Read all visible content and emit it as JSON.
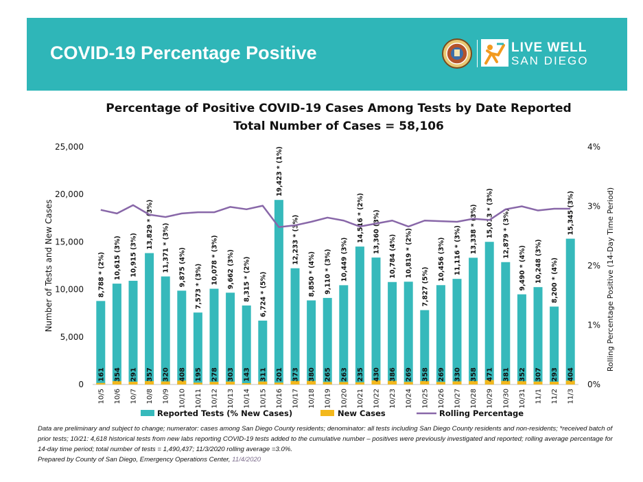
{
  "header": {
    "title": "COVID-19 Percentage Positive",
    "logo_line1": "LIVE WELL",
    "logo_line2": "SAN DIEGO"
  },
  "colors": {
    "banner": "#2fb6b8",
    "bars": "#36b9bb",
    "new_cases": "#f3b81c",
    "rolling": "#8867a8"
  },
  "chart_data": {
    "type": "bar",
    "title": "Percentage of Positive COVID-19 Cases Among Tests by Date Reported",
    "subtitle": "Total Number of Cases = 58,106",
    "ylabel": "Number of Tests and New Cases",
    "y2label": "Rolling Percentage Positive (14-Day Time Period)",
    "ylim": [
      0,
      25000
    ],
    "y2lim": [
      0,
      4
    ],
    "yticks": [
      "0",
      "5,000",
      "10,000",
      "15,000",
      "20,000",
      "25,000"
    ],
    "y2ticks": [
      "0%",
      "1%",
      "2%",
      "3%",
      "4%"
    ],
    "categories": [
      "10/5",
      "10/6",
      "10/7",
      "10/8",
      "10/9",
      "10/10",
      "10/11",
      "10/12",
      "10/13",
      "10/14",
      "10/15",
      "10/16",
      "10/17",
      "10/18",
      "10/19",
      "10/20",
      "10/21",
      "10/22",
      "10/23",
      "10/24",
      "10/25",
      "10/26",
      "10/27",
      "10/28",
      "10/29",
      "10/30",
      "10/31",
      "11/1",
      "11/2",
      "11/3"
    ],
    "series": [
      {
        "name": "Reported Tests (% New Cases)",
        "values": [
          8788,
          10615,
          10915,
          13829,
          11371,
          9875,
          7573,
          10078,
          9662,
          8315,
          6724,
          19423,
          12233,
          8850,
          9110,
          10449,
          14516,
          13360,
          10784,
          10819,
          7827,
          10456,
          11116,
          13338,
          15013,
          12879,
          9490,
          10248,
          8200,
          15345
        ],
        "labels": [
          "8,788 * (2%)",
          "10,615 (3%)",
          "10,915 (3%)",
          "13,829 * (3%)",
          "11,371 * (3%)",
          "9,875 (4%)",
          "7,573 * (3%)",
          "10,078 * (3%)",
          "9,662 (3%)",
          "8,315 * (2%)",
          "6,724 * (5%)",
          "19,423 * (1%)",
          "12,233 * (3%)",
          "8,850 * (4%)",
          "9,110 * (3%)",
          "10,449 (3%)",
          "14,516 * (2%)",
          "13,360 (3%)",
          "10,784 (4%)",
          "10,819 * (2%)",
          "7,827 (5%)",
          "10,456 (3%)",
          "11,116 * (3%)",
          "13,338 * (3%)",
          "15,013 * (3%)",
          "12,879 * (3%)",
          "9,490 * (4%)",
          "10,248 (3%)",
          "8,200 * (4%)",
          "15,345 (3%)"
        ]
      },
      {
        "name": "New Cases",
        "values": [
          161,
          354,
          291,
          357,
          320,
          408,
          195,
          278,
          303,
          143,
          311,
          201,
          373,
          380,
          265,
          263,
          235,
          430,
          386,
          269,
          358,
          269,
          330,
          358,
          471,
          381,
          352,
          307,
          293,
          404
        ],
        "labels": [
          "161",
          "354",
          "291",
          "357",
          "320",
          "408",
          "195",
          "278",
          "303",
          "143",
          "311",
          "201",
          "373",
          "380",
          "265",
          "263",
          "235",
          "430",
          "386",
          "269",
          "358",
          "269",
          "330",
          "358",
          "471",
          "381",
          "352",
          "307",
          "293",
          "404"
        ]
      },
      {
        "name": "Rolling Percentage",
        "axis": "right",
        "values": [
          2.94,
          2.88,
          3.02,
          2.86,
          2.82,
          2.88,
          2.9,
          2.9,
          2.99,
          2.95,
          3.01,
          2.65,
          2.68,
          2.74,
          2.81,
          2.76,
          2.66,
          2.71,
          2.76,
          2.66,
          2.76,
          2.75,
          2.74,
          2.79,
          2.77,
          2.95,
          3.0,
          2.93,
          2.96,
          2.96
        ]
      }
    ],
    "legend": "bottom"
  },
  "footnote": {
    "text": "Data are preliminary and subject to change; numerator: cases among San Diego County residents; denominator: all tests including San Diego County residents and non-residents; *received batch of prior tests; 10/21: 4,618 historical tests from new labs reporting COVID-19 tests added to the cumulative number – positives were previously investigated and reported; rolling average percentage for 14-day time period; total number of tests = 1,490,437; 11/3/2020 rolling average =3.0%.",
    "prepared_by": "Prepared by County of San Diego, Emergency Operations Center, ",
    "date": "11/4/2020"
  }
}
